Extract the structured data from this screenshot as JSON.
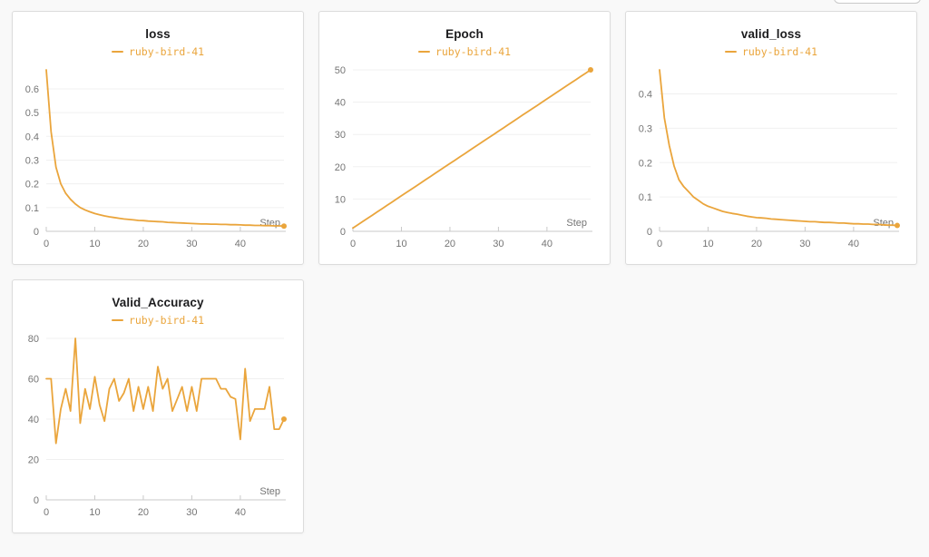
{
  "run": {
    "name": "ruby-bird-41",
    "color": "#EAA53C"
  },
  "colors": {
    "accent": "#EAA53C",
    "page_bg": "#f9f9f9",
    "panel_bg": "#ffffff",
    "panel_border": "#dcdcdc",
    "title_text": "#1c1c1e",
    "tick_text": "#757575",
    "axis_line": "#c9c9c9",
    "gridline": "#f0f0f0"
  },
  "steps": [
    0,
    1,
    2,
    3,
    4,
    5,
    6,
    7,
    8,
    9,
    10,
    11,
    12,
    13,
    14,
    15,
    16,
    17,
    18,
    19,
    20,
    21,
    22,
    23,
    24,
    25,
    26,
    27,
    28,
    29,
    30,
    31,
    32,
    33,
    34,
    35,
    36,
    37,
    38,
    39,
    40,
    41,
    42,
    43,
    44,
    45,
    46,
    47,
    48,
    49
  ],
  "chart_data": [
    {
      "type": "line",
      "title": "loss",
      "xlabel": "Step",
      "x_range": [
        0,
        49
      ],
      "y_domain": [
        0,
        0.68
      ],
      "grid": "horizontal",
      "legend_position": "top-center",
      "end_marker": "dot",
      "x_ticks": {
        "values": [
          0,
          10,
          20,
          30,
          40
        ],
        "labels": [
          "0",
          "10",
          "20",
          "30",
          "40"
        ]
      },
      "y_ticks": {
        "values": [
          0,
          0.1,
          0.2,
          0.3,
          0.4,
          0.5,
          0.6
        ],
        "labels": [
          "0",
          "0.1",
          "0.2",
          "0.3",
          "0.4",
          "0.5",
          "0.6"
        ]
      },
      "series": [
        {
          "name": "ruby-bird-41",
          "color": "#EAA53C",
          "values": [
            0.68,
            0.42,
            0.27,
            0.2,
            0.16,
            0.135,
            0.115,
            0.1,
            0.09,
            0.082,
            0.075,
            0.07,
            0.065,
            0.061,
            0.058,
            0.055,
            0.052,
            0.05,
            0.048,
            0.046,
            0.045,
            0.043,
            0.042,
            0.041,
            0.04,
            0.038,
            0.037,
            0.036,
            0.035,
            0.034,
            0.033,
            0.032,
            0.031,
            0.031,
            0.03,
            0.03,
            0.029,
            0.029,
            0.028,
            0.028,
            0.027,
            0.026,
            0.026,
            0.025,
            0.025,
            0.024,
            0.024,
            0.023,
            0.023,
            0.022
          ]
        }
      ]
    },
    {
      "type": "line",
      "title": "Epoch",
      "xlabel": "Step",
      "x_range": [
        0,
        49
      ],
      "y_domain": [
        0,
        50
      ],
      "grid": "horizontal",
      "legend_position": "top-center",
      "end_marker": "dot",
      "x_ticks": {
        "values": [
          0,
          10,
          20,
          30,
          40
        ],
        "labels": [
          "0",
          "10",
          "20",
          "30",
          "40"
        ]
      },
      "y_ticks": {
        "values": [
          0,
          10,
          20,
          30,
          40,
          50
        ],
        "labels": [
          "0",
          "10",
          "20",
          "30",
          "40",
          "50"
        ]
      },
      "series": [
        {
          "name": "ruby-bird-41",
          "color": "#EAA53C",
          "values": [
            1,
            2,
            3,
            4,
            5,
            6,
            7,
            8,
            9,
            10,
            11,
            12,
            13,
            14,
            15,
            16,
            17,
            18,
            19,
            20,
            21,
            22,
            23,
            24,
            25,
            26,
            27,
            28,
            29,
            30,
            31,
            32,
            33,
            34,
            35,
            36,
            37,
            38,
            39,
            40,
            41,
            42,
            43,
            44,
            45,
            46,
            47,
            48,
            49,
            50
          ]
        }
      ]
    },
    {
      "type": "line",
      "title": "valid_loss",
      "xlabel": "Step",
      "x_range": [
        0,
        49
      ],
      "y_domain": [
        0,
        0.47
      ],
      "grid": "horizontal",
      "legend_position": "top-center",
      "end_marker": "dot",
      "x_ticks": {
        "values": [
          0,
          10,
          20,
          30,
          40
        ],
        "labels": [
          "0",
          "10",
          "20",
          "30",
          "40"
        ]
      },
      "y_ticks": {
        "values": [
          0,
          0.1,
          0.2,
          0.3,
          0.4
        ],
        "labels": [
          "0",
          "0.1",
          "0.2",
          "0.3",
          "0.4"
        ]
      },
      "series": [
        {
          "name": "ruby-bird-41",
          "color": "#EAA53C",
          "values": [
            0.47,
            0.33,
            0.25,
            0.19,
            0.15,
            0.13,
            0.115,
            0.1,
            0.09,
            0.08,
            0.073,
            0.068,
            0.063,
            0.058,
            0.055,
            0.052,
            0.05,
            0.047,
            0.044,
            0.042,
            0.04,
            0.039,
            0.038,
            0.036,
            0.035,
            0.034,
            0.033,
            0.032,
            0.031,
            0.03,
            0.029,
            0.028,
            0.028,
            0.027,
            0.026,
            0.026,
            0.025,
            0.024,
            0.024,
            0.023,
            0.022,
            0.022,
            0.021,
            0.021,
            0.02,
            0.02,
            0.019,
            0.018,
            0.018,
            0.017
          ]
        }
      ]
    },
    {
      "type": "line",
      "title": "Valid_Accuracy",
      "xlabel": "Step",
      "x_range": [
        0,
        49
      ],
      "y_domain": [
        0,
        80
      ],
      "grid": "horizontal",
      "legend_position": "top-center",
      "end_marker": "dot",
      "x_ticks": {
        "values": [
          0,
          10,
          20,
          30,
          40
        ],
        "labels": [
          "0",
          "10",
          "20",
          "30",
          "40"
        ]
      },
      "y_ticks": {
        "values": [
          0,
          20,
          40,
          60,
          80
        ],
        "labels": [
          "0",
          "20",
          "40",
          "60",
          "80"
        ]
      },
      "series": [
        {
          "name": "ruby-bird-41",
          "color": "#EAA53C",
          "values": [
            60,
            60,
            28,
            45,
            55,
            44,
            80,
            38,
            55,
            45,
            61,
            47,
            39,
            55,
            60,
            49,
            53,
            60,
            44,
            56,
            45,
            56,
            44,
            66,
            55,
            60,
            44,
            50,
            56,
            44,
            56,
            44,
            60,
            60,
            60,
            60,
            55,
            55,
            51,
            50,
            30,
            65,
            39,
            45,
            45,
            45,
            56,
            35,
            35,
            40
          ]
        }
      ]
    }
  ]
}
